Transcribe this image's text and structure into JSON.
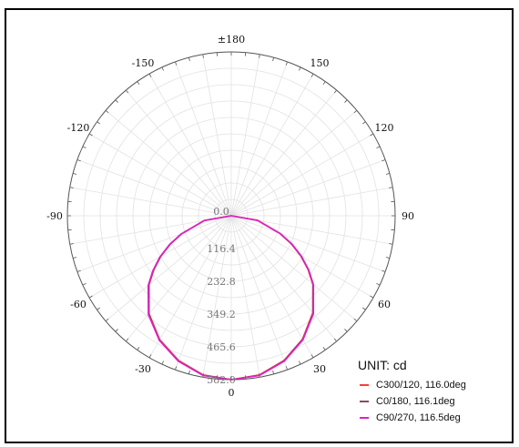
{
  "chart_data": {
    "type": "polar-line",
    "unit_label": "UNIT: cd",
    "angle_labels": [
      "±180",
      "150",
      "120",
      "90",
      "60",
      "30",
      "0",
      "-30",
      "-60",
      "-90",
      "-120",
      "-150"
    ],
    "angle_values": [
      180,
      150,
      120,
      90,
      60,
      30,
      0,
      -30,
      -60,
      -90,
      -120,
      -150
    ],
    "radial_labels": [
      "0.0",
      "116.4",
      "232.8",
      "349.2",
      "465.6",
      "582.0"
    ],
    "radial_values": [
      0,
      116.4,
      232.8,
      349.2,
      465.6,
      582.0
    ],
    "rmax": 582.0,
    "legend_position": "bottom-right",
    "series": [
      {
        "name": "C300/120, 116.0deg",
        "color": "#ff3c3c",
        "angles": [
          0,
          10,
          20,
          30,
          40,
          50,
          55,
          60,
          65,
          70,
          80,
          90,
          -10,
          -20,
          -30,
          -40,
          -50,
          -55,
          -60,
          -65,
          -70,
          -80,
          -90
        ],
        "values": [
          582,
          574,
          547,
          506,
          450,
          378,
          333,
          285,
          235,
          183,
          94,
          0,
          574,
          547,
          508,
          454,
          381,
          336,
          289,
          239,
          187,
          96,
          0
        ]
      },
      {
        "name": "C0/180, 116.1deg",
        "color": "#8b4a5c",
        "angles": [
          0,
          10,
          20,
          30,
          40,
          50,
          55,
          60,
          65,
          70,
          80,
          90,
          -10,
          -20,
          -30,
          -40,
          -50,
          -55,
          -60,
          -65,
          -70,
          -80,
          -90
        ],
        "values": [
          582,
          575,
          548,
          507,
          452,
          379,
          334,
          286,
          236,
          184,
          95,
          0,
          575,
          549,
          510,
          456,
          383,
          338,
          291,
          240,
          188,
          97,
          0
        ]
      },
      {
        "name": "C90/270, 116.5deg",
        "color": "#e020c8",
        "angles": [
          0,
          10,
          20,
          30,
          40,
          50,
          55,
          60,
          65,
          70,
          80,
          90,
          -10,
          -20,
          -30,
          -40,
          -50,
          -55,
          -60,
          -65,
          -70,
          -80,
          -90
        ],
        "values": [
          582,
          576,
          550,
          509,
          454,
          381,
          336,
          288,
          238,
          186,
          96,
          0,
          576,
          550,
          511,
          458,
          385,
          340,
          293,
          242,
          190,
          98,
          0
        ]
      }
    ]
  }
}
